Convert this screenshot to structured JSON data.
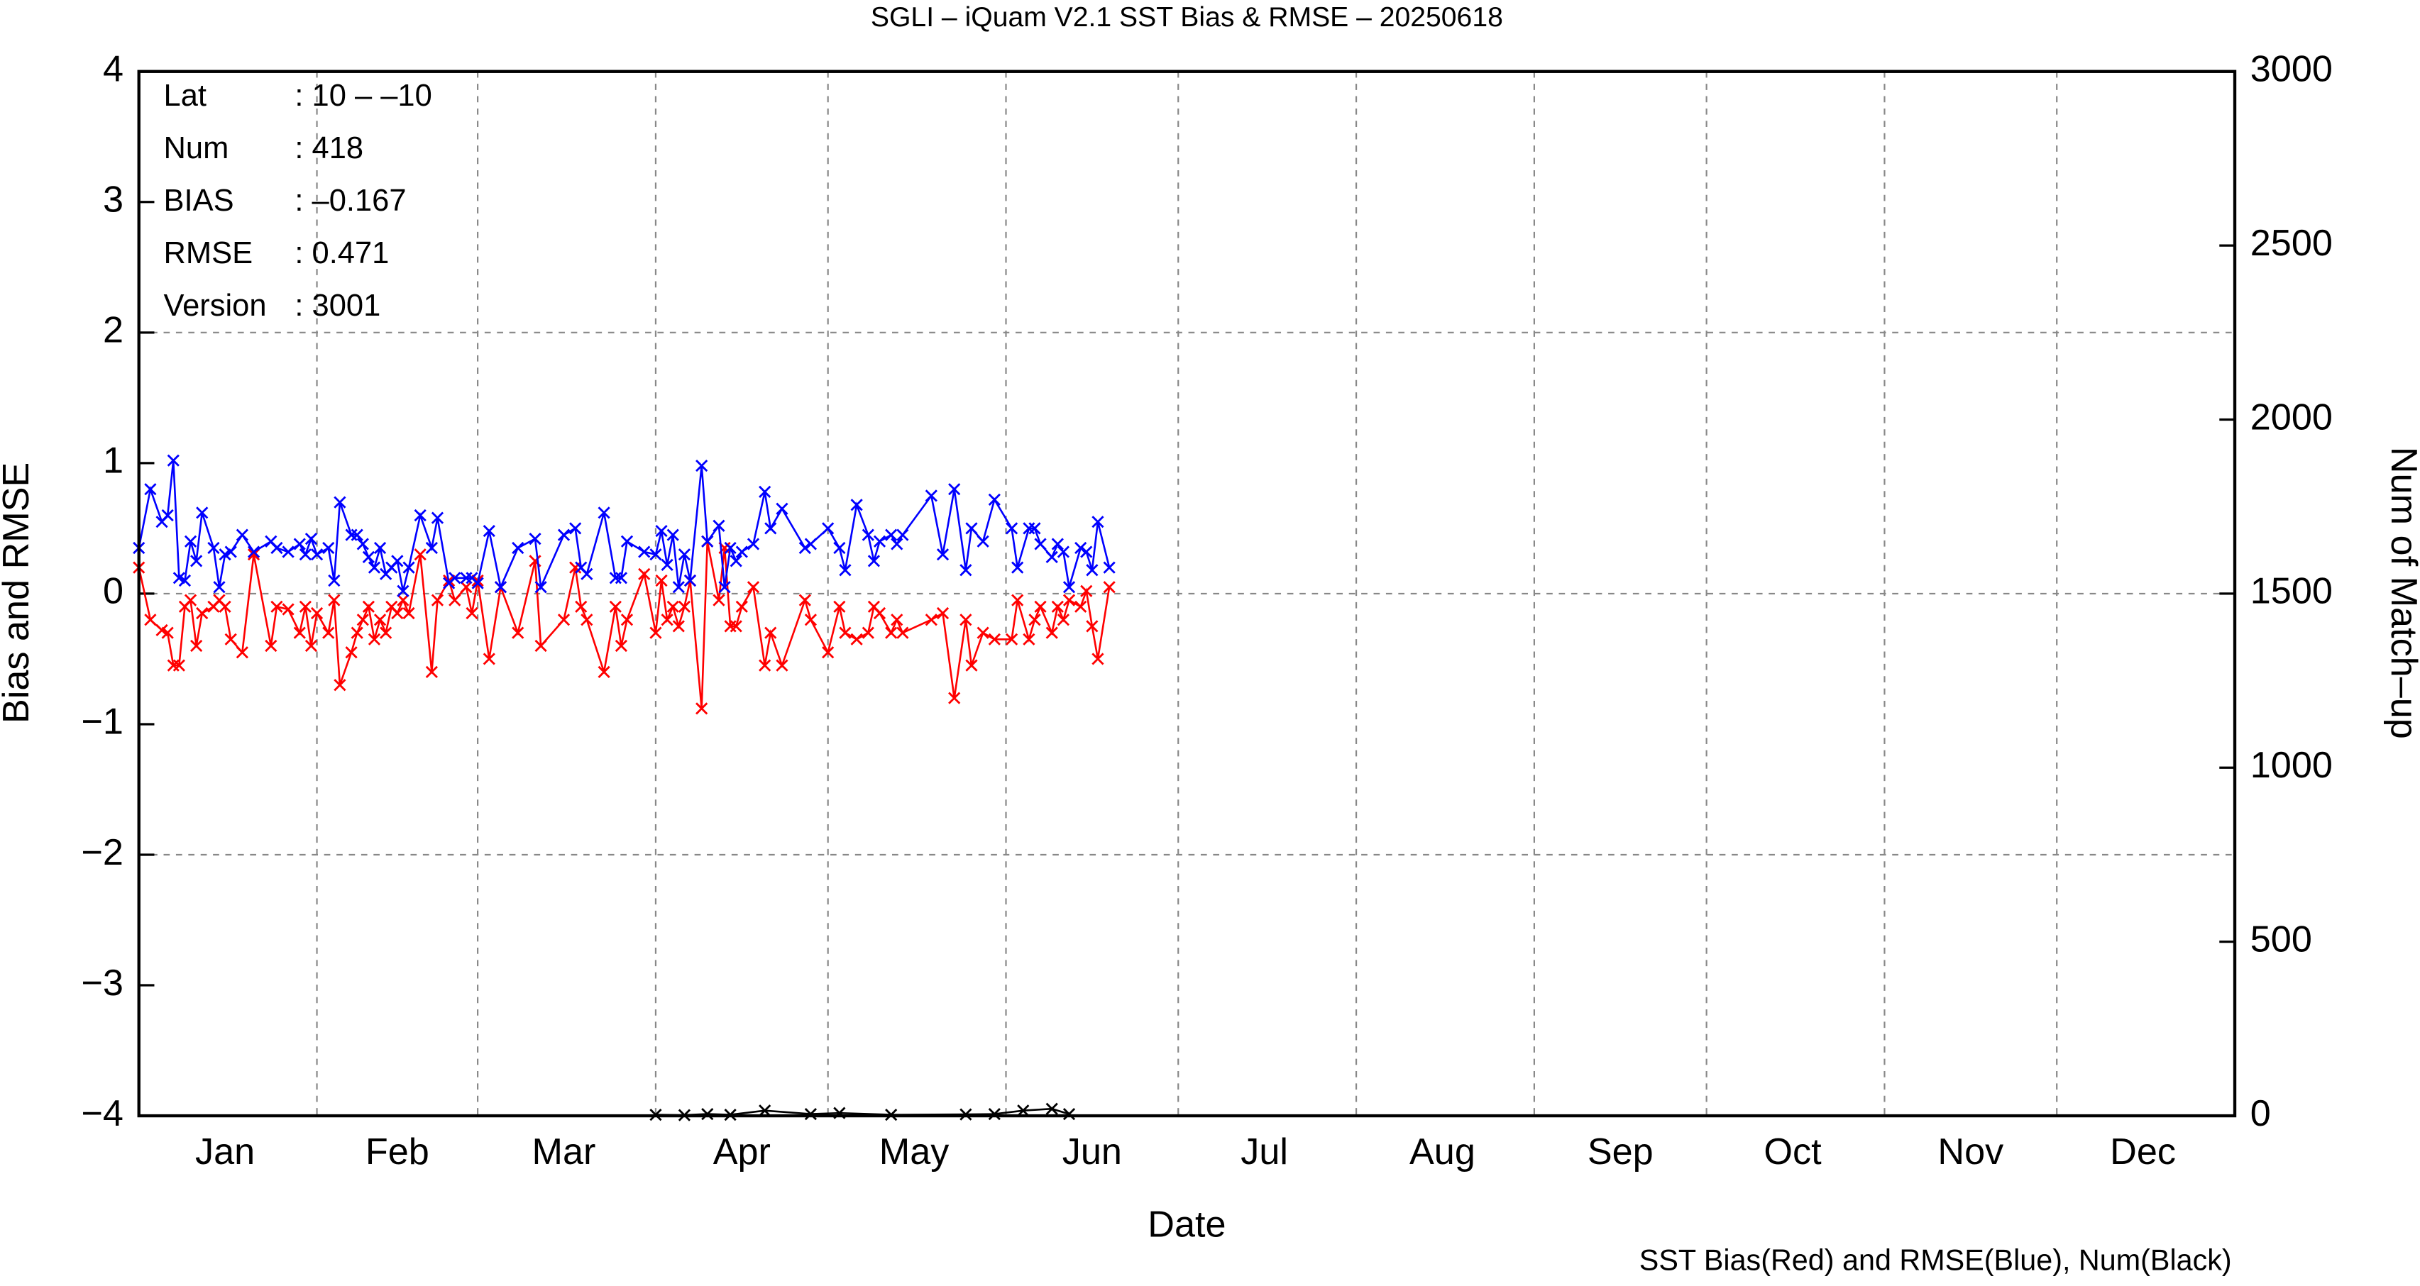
{
  "chart_data": {
    "type": "line",
    "title": "SGLI – iQuam V2.1 SST Bias & RMSE  – 20250618",
    "xlabel": "Date",
    "ylabel": "Bias and RMSE",
    "y2label": "Num of Match–up",
    "note": "SST Bias(Red) and RMSE(Blue), Num(Black)",
    "info": [
      {
        "label": "Lat",
        "value": ": 10 – –10"
      },
      {
        "label": "Num",
        "value": ": 418"
      },
      {
        "label": "BIAS",
        "value": ": –0.167"
      },
      {
        "label": "RMSE",
        "value": ": 0.471"
      },
      {
        "label": "Version",
        "value": ": 3001"
      }
    ],
    "xlim": [
      1,
      366
    ],
    "xticks": [
      {
        "value": 16,
        "label": "Jan"
      },
      {
        "value": 46,
        "label": "Feb"
      },
      {
        "value": 75,
        "label": "Mar"
      },
      {
        "value": 106,
        "label": "Apr"
      },
      {
        "value": 136,
        "label": "May"
      },
      {
        "value": 167,
        "label": "Jun"
      },
      {
        "value": 197,
        "label": "Jul"
      },
      {
        "value": 228,
        "label": "Aug"
      },
      {
        "value": 259,
        "label": "Sep"
      },
      {
        "value": 289,
        "label": "Oct"
      },
      {
        "value": 320,
        "label": "Nov"
      },
      {
        "value": 350,
        "label": "Dec"
      }
    ],
    "xgrid": [
      32,
      60,
      91,
      121,
      152,
      182,
      213,
      244,
      274,
      305,
      335
    ],
    "ylim": [
      -4,
      4
    ],
    "yticks": [
      {
        "value": -4,
        "label": "−4"
      },
      {
        "value": -3,
        "label": "−3"
      },
      {
        "value": -2,
        "label": "−2"
      },
      {
        "value": -1,
        "label": "−1"
      },
      0,
      1,
      2,
      3,
      4
    ],
    "ygrid": [
      -2,
      0,
      2
    ],
    "y2lim": [
      0,
      3000
    ],
    "y2ticks": [
      0,
      500,
      1000,
      1500,
      2000,
      2500,
      3000
    ],
    "x": [
      1,
      3,
      5,
      6,
      7,
      8,
      9,
      10,
      11,
      12,
      14,
      15,
      16,
      17,
      19,
      21,
      24,
      25,
      27,
      29,
      30,
      31,
      32,
      34,
      35,
      36,
      38,
      39,
      40,
      41,
      42,
      43,
      44,
      45,
      46,
      47,
      48,
      50,
      52,
      53,
      55,
      56,
      58,
      59,
      60,
      62,
      64,
      67,
      70,
      71,
      75,
      77,
      78,
      79,
      82,
      84,
      85,
      86,
      89,
      91,
      92,
      93,
      94,
      95,
      96,
      97,
      99,
      100,
      102,
      103,
      104,
      105,
      106,
      108,
      110,
      111,
      113,
      117,
      118,
      121,
      123,
      124,
      126,
      128,
      129,
      130,
      132,
      133,
      134,
      139,
      141,
      143,
      145,
      146,
      148,
      150,
      153,
      154,
      156,
      157,
      158,
      160,
      161,
      162,
      163,
      165,
      166,
      167,
      168,
      170
    ],
    "series": [
      {
        "color": "#ff0000",
        "values": [
          0.2,
          -0.2,
          -0.28,
          -0.3,
          -0.55,
          -0.55,
          -0.1,
          -0.05,
          -0.4,
          -0.15,
          -0.1,
          -0.05,
          -0.1,
          -0.35,
          -0.45,
          0.3,
          -0.4,
          -0.1,
          -0.12,
          -0.3,
          -0.1,
          -0.4,
          -0.15,
          -0.3,
          -0.05,
          -0.7,
          -0.45,
          -0.3,
          -0.2,
          -0.1,
          -0.35,
          -0.2,
          -0.3,
          -0.1,
          -0.15,
          -0.05,
          -0.15,
          0.3,
          -0.6,
          -0.05,
          0.1,
          -0.05,
          0.05,
          -0.15,
          0.1,
          -0.5,
          0.05,
          -0.3,
          0.25,
          -0.4,
          -0.2,
          0.2,
          -0.1,
          -0.2,
          -0.6,
          -0.1,
          -0.4,
          -0.2,
          0.15,
          -0.3,
          0.1,
          -0.2,
          -0.1,
          -0.25,
          -0.1,
          0.1,
          -0.88,
          0.4,
          -0.05,
          0.35,
          -0.25,
          -0.25,
          -0.1,
          0.05,
          -0.55,
          -0.3,
          -0.55,
          -0.05,
          -0.2,
          -0.45,
          -0.1,
          -0.3,
          -0.35,
          -0.3,
          -0.1,
          -0.15,
          -0.3,
          -0.2,
          -0.3,
          -0.2,
          -0.15,
          -0.8,
          -0.2,
          -0.55,
          -0.3,
          -0.35,
          -0.35,
          -0.05,
          -0.35,
          -0.2,
          -0.1,
          -0.3,
          -0.1,
          -0.2,
          -0.05,
          -0.1,
          0.02,
          -0.25,
          -0.5,
          0.05
        ]
      },
      {
        "color": "#0000ff",
        "values": [
          0.35,
          0.8,
          0.55,
          0.6,
          1.02,
          0.12,
          0.1,
          0.4,
          0.25,
          0.62,
          0.35,
          0.05,
          0.3,
          0.32,
          0.45,
          0.32,
          0.4,
          0.35,
          0.32,
          0.38,
          0.3,
          0.42,
          0.3,
          0.35,
          0.1,
          0.7,
          0.45,
          0.45,
          0.38,
          0.28,
          0.2,
          0.35,
          0.15,
          0.2,
          0.25,
          0.02,
          0.2,
          0.6,
          0.35,
          0.58,
          0.08,
          0.12,
          0.12,
          0.12,
          0.08,
          0.48,
          0.05,
          0.35,
          0.42,
          0.05,
          0.45,
          0.5,
          0.2,
          0.15,
          0.62,
          0.12,
          0.12,
          0.4,
          0.32,
          0.3,
          0.48,
          0.22,
          0.45,
          0.05,
          0.3,
          0.1,
          0.98,
          0.4,
          0.52,
          0.05,
          0.35,
          0.25,
          0.32,
          0.38,
          0.78,
          0.5,
          0.65,
          0.35,
          0.38,
          0.5,
          0.35,
          0.18,
          0.68,
          0.45,
          0.25,
          0.4,
          0.45,
          0.38,
          0.45,
          0.75,
          0.3,
          0.8,
          0.18,
          0.5,
          0.4,
          0.72,
          0.5,
          0.2,
          0.5,
          0.5,
          0.38,
          0.28,
          0.38,
          0.32,
          0.05,
          0.35,
          0.32,
          0.18,
          0.55,
          0.2
        ]
      },
      {
        "color": "#000000",
        "axis": "y2",
        "x": [
          91,
          96,
          100,
          104,
          110,
          118,
          123,
          132,
          145,
          150,
          155,
          160,
          163
        ],
        "values": [
          3,
          2,
          5,
          3,
          15,
          5,
          8,
          3,
          4,
          5,
          15,
          20,
          5
        ]
      }
    ]
  }
}
